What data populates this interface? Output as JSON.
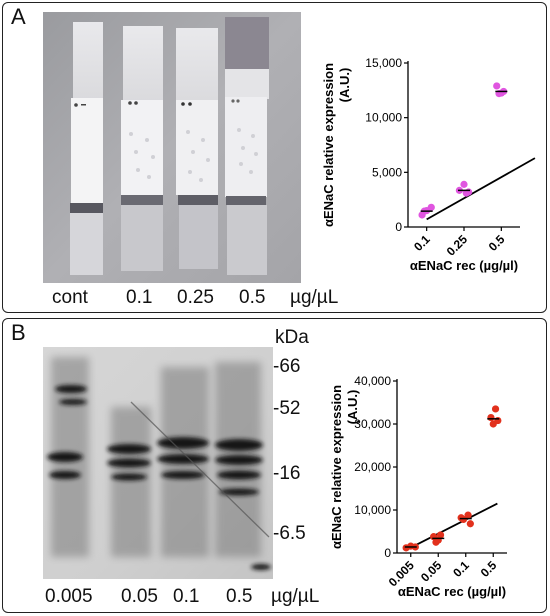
{
  "panel_a": {
    "letter": "A",
    "lane_labels": [
      "cont",
      "0.1",
      "0.25",
      "0.5",
      "µg/µL"
    ]
  },
  "panel_b": {
    "letter": "B",
    "lane_labels": [
      "0.005",
      "0.05",
      "0.1",
      "0.5",
      "µg/µL"
    ],
    "kda_title": "kDa",
    "markers": [
      "-66",
      "-52",
      "-16",
      "-6.5"
    ]
  },
  "chart_data": [
    {
      "type": "scatter",
      "categories": [
        "0.1",
        "0.25",
        "0.5"
      ],
      "points": [
        {
          "cat": 0,
          "y": 1100
        },
        {
          "cat": 0,
          "y": 1500
        },
        {
          "cat": 0,
          "y": 1800
        },
        {
          "cat": 0,
          "y": 1450
        },
        {
          "cat": 1,
          "y": 3100
        },
        {
          "cat": 1,
          "y": 3350
        },
        {
          "cat": 1,
          "y": 3900
        },
        {
          "cat": 1,
          "y": 3200
        },
        {
          "cat": 2,
          "y": 12200
        },
        {
          "cat": 2,
          "y": 12400
        },
        {
          "cat": 2,
          "y": 12900
        },
        {
          "cat": 2,
          "y": 12250
        }
      ],
      "means": [
        1450,
        3350,
        12400
      ],
      "regression": {
        "from": [
          0,
          700
        ],
        "to": [
          2.9,
          6300
        ]
      },
      "color": "#e055e0",
      "ylim": [
        0,
        15000
      ],
      "yticks": [
        "0",
        "5,000",
        "10,000",
        "15,000"
      ],
      "ytick_values": [
        0,
        5000,
        10000,
        15000
      ],
      "xlabel": "αENaC rec (µg/µl)",
      "ylabel": "αENaC relative expression",
      "ylabel_sub": "(A.U.)",
      "grid": false
    },
    {
      "type": "scatter",
      "categories": [
        "0.005",
        "0.05",
        "0.1",
        "0.5"
      ],
      "points": [
        {
          "cat": 0,
          "y": 1200
        },
        {
          "cat": 0,
          "y": 1600
        },
        {
          "cat": 0,
          "y": 1400
        },
        {
          "cat": 1,
          "y": 2500
        },
        {
          "cat": 1,
          "y": 4200
        },
        {
          "cat": 1,
          "y": 3800
        },
        {
          "cat": 1,
          "y": 3000
        },
        {
          "cat": 2,
          "y": 6800
        },
        {
          "cat": 2,
          "y": 7800
        },
        {
          "cat": 2,
          "y": 8800
        },
        {
          "cat": 2,
          "y": 8200
        },
        {
          "cat": 3,
          "y": 30000
        },
        {
          "cat": 3,
          "y": 30800
        },
        {
          "cat": 3,
          "y": 31500
        },
        {
          "cat": 3,
          "y": 33500
        }
      ],
      "means": [
        1400,
        3400,
        8000,
        31200
      ],
      "regression": {
        "from": [
          -0.2,
          600
        ],
        "to": [
          3.15,
          11500
        ]
      },
      "color": "#e2311d",
      "ylim": [
        0,
        40000
      ],
      "yticks": [
        "0",
        "10,000",
        "20,000",
        "30,000",
        "40,000"
      ],
      "ytick_values": [
        0,
        10000,
        20000,
        30000,
        40000
      ],
      "xlabel": "αENaC rec (µg/µl)",
      "ylabel": "αENaC relative expression",
      "ylabel_sub": "(A.U.)",
      "grid": false
    }
  ]
}
